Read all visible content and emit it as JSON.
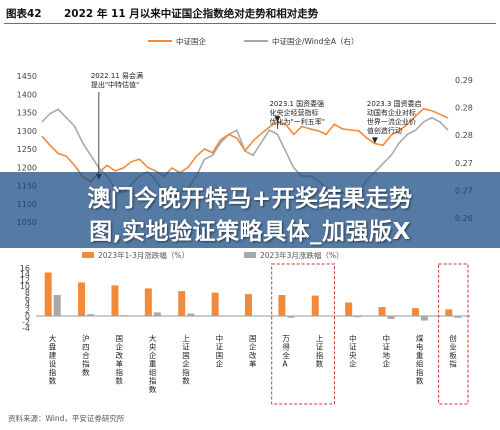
{
  "figure": {
    "number": "图表42",
    "title": "2022 年 11 月以来中证国企指数绝对走势和相对走势"
  },
  "overlay": {
    "line1": "澳门今晚开特马+开奖结果走势",
    "line2": "图,实地验证策略具体_加强版X"
  },
  "source_bottom": "资料来源：Wind，平安证券研究所",
  "colors": {
    "orange": "#f28a3c",
    "gray": "#a9a9a9",
    "frame": "#c0392b"
  },
  "chart_data": [
    {
      "type": "line",
      "series": [
        {
          "name": "中证国企",
          "axis": "left",
          "x": [
            0,
            2,
            4,
            6,
            8,
            10,
            12,
            14,
            16,
            18,
            20,
            22,
            24,
            26,
            28,
            30,
            32,
            34,
            36,
            38,
            40,
            42,
            44,
            46,
            48,
            50,
            52,
            54,
            56,
            58,
            60,
            62,
            64,
            66,
            68,
            70,
            72,
            74,
            76,
            78,
            80,
            82,
            84,
            86,
            88,
            90,
            92,
            94,
            96,
            98,
            100
          ],
          "values": [
            1285,
            1260,
            1238,
            1230,
            1205,
            1175,
            1160,
            1185,
            1205,
            1190,
            1198,
            1215,
            1222,
            1200,
            1190,
            1175,
            1198,
            1185,
            1200,
            1230,
            1250,
            1240,
            1275,
            1290,
            1280,
            1245,
            1272,
            1292,
            1310,
            1325,
            1318,
            1290,
            1312,
            1305,
            1300,
            1290,
            1318,
            1305,
            1302,
            1300,
            1280,
            1265,
            1260,
            1288,
            1300,
            1318,
            1340,
            1360,
            1355,
            1345,
            1335
          ]
        },
        {
          "name": "中证国企/Wind全A（右）",
          "axis": "right",
          "x": [
            0,
            2,
            4,
            6,
            8,
            10,
            12,
            14,
            16,
            18,
            20,
            22,
            24,
            26,
            28,
            30,
            32,
            34,
            36,
            38,
            40,
            42,
            44,
            46,
            48,
            50,
            52,
            54,
            56,
            58,
            60,
            62,
            64,
            66,
            68,
            70,
            72,
            74,
            76,
            78,
            80,
            82,
            84,
            86,
            88,
            90,
            92,
            94,
            96,
            98,
            100
          ],
          "values": [
            0.279,
            0.281,
            0.282,
            0.28,
            0.278,
            0.274,
            0.271,
            0.268,
            0.266,
            0.263,
            0.262,
            0.264,
            0.266,
            0.267,
            0.265,
            0.262,
            0.261,
            0.262,
            0.263,
            0.266,
            0.27,
            0.271,
            0.274,
            0.276,
            0.277,
            0.272,
            0.271,
            0.274,
            0.277,
            0.276,
            0.272,
            0.268,
            0.266,
            0.266,
            0.265,
            0.263,
            0.262,
            0.262,
            0.261,
            0.262,
            0.265,
            0.267,
            0.269,
            0.271,
            0.274,
            0.276,
            0.277,
            0.279,
            0.28,
            0.279,
            0.277
          ]
        }
      ],
      "yleft": {
        "ticks": [
          1450,
          1400,
          1350,
          1300,
          1250,
          1200,
          1150,
          1100,
          1050
        ],
        "range": [
          1050,
          1450
        ]
      },
      "yright": {
        "ticks": [
          "0.29",
          "0.28",
          "0.28",
          "0.27",
          "0.27",
          "0.26"
        ],
        "range": [
          0.255,
          0.29
        ]
      },
      "annotations": [
        {
          "lines": [
            "2022.11 易会满",
            "提出\"中特估值\""
          ],
          "x": 14,
          "y": 1160
        },
        {
          "lines": [
            "2023.1 国资委强",
            "化央企经营指标",
            "优化为\"一利五率\""
          ],
          "x": 58,
          "y": 1318
        },
        {
          "lines": [
            "2023.3 国资委启",
            "动国有企业对标",
            "世界一流企业价",
            "值创造行动"
          ],
          "x": 82,
          "y": 1260
        }
      ],
      "legend_position": "top-center"
    },
    {
      "type": "bar",
      "y_ticks": [
        "16",
        "14",
        "12",
        "10",
        "8",
        "6",
        "4",
        "2",
        "0",
        "-2",
        "-4"
      ],
      "ylim": [
        -4,
        16
      ],
      "group_labels": [
        "2023年1-3月涨跌幅（%）",
        "2023年3月涨跌幅（%）"
      ],
      "categories": [
        "大盘建设指数",
        "沪四合指数",
        "国企改革指数",
        "大央企重组指数",
        "上证国企指数",
        "中证国企",
        "国企改革",
        "万得全A",
        "上证指数",
        "中证央企",
        "中证地企",
        "煤电重组指数",
        "创业板指"
      ],
      "series": [
        {
          "values": [
            14.5,
            11.2,
            10.2,
            9.2,
            8.3,
            7.8,
            7.3,
            7.0,
            6.8,
            4.5,
            3.0,
            2.6,
            2.2
          ]
        },
        {
          "values": [
            7.0,
            0.6,
            0.3,
            1.2,
            0.8,
            -0.2,
            0.0,
            -0.6,
            -0.2,
            -0.4,
            -1.0,
            -1.5,
            -0.6
          ]
        }
      ],
      "highlighted_categories": [
        "万得全A",
        "上证指数",
        "创业板指"
      ]
    }
  ]
}
